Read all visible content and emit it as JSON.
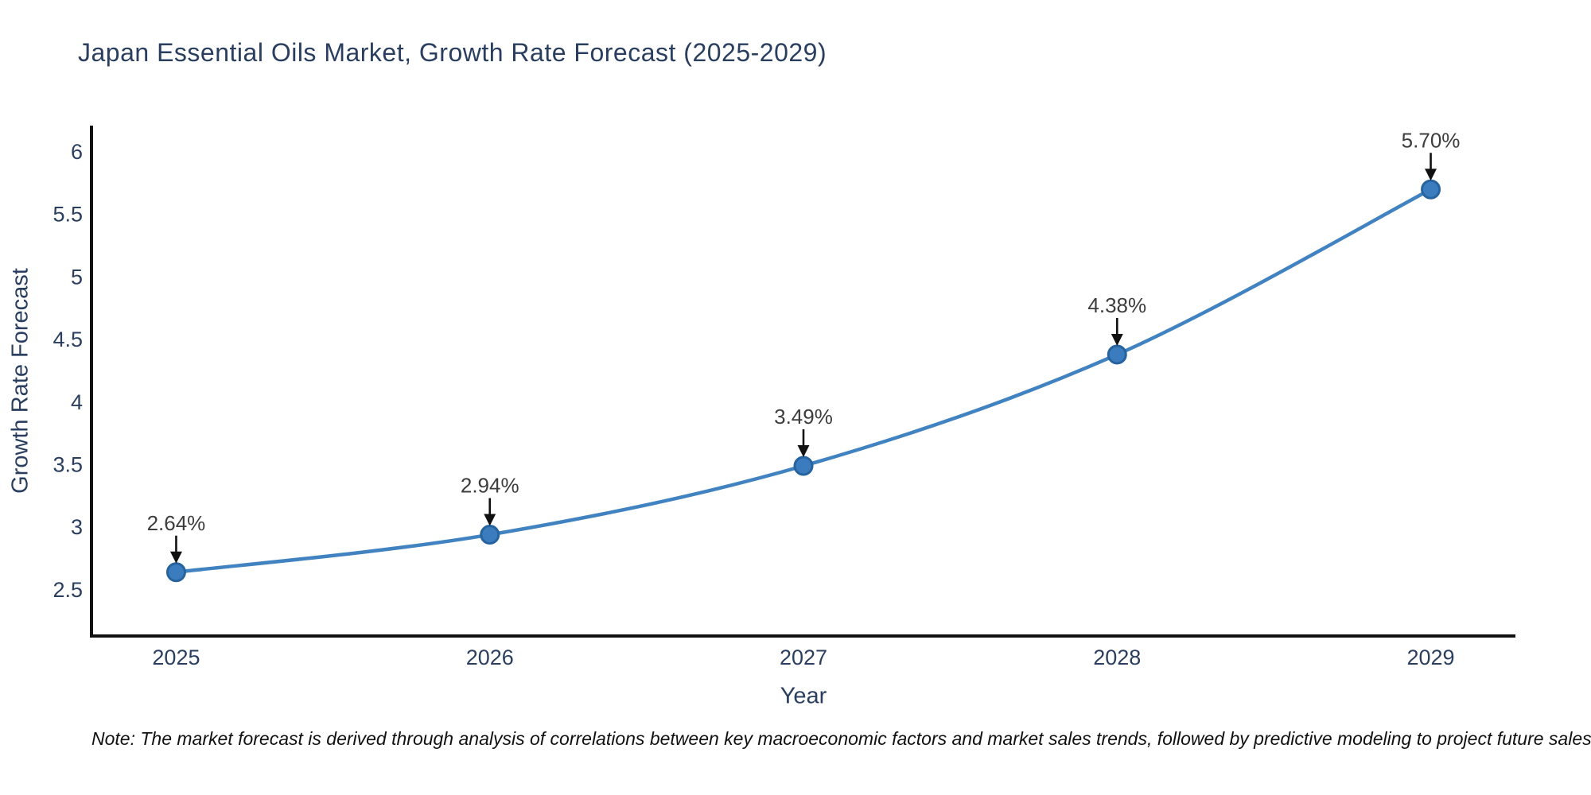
{
  "title": "Japan Essential Oils Market, Growth Rate Forecast (2025-2029)",
  "note": "Note: The market forecast is derived through analysis of correlations between key macroeconomic factors and market sales trends, followed by predictive modeling to project future sales",
  "chart_data": {
    "type": "line",
    "title": "Japan Essential Oils Market, Growth Rate Forecast (2025-2029)",
    "x": [
      2025,
      2026,
      2027,
      2028,
      2029
    ],
    "values": [
      2.64,
      2.94,
      3.49,
      4.38,
      5.7
    ],
    "point_labels": [
      "2.64%",
      "2.94%",
      "3.49%",
      "4.38%",
      "5.70%"
    ],
    "xlabel": "Year",
    "ylabel": "Growth Rate Forecast",
    "xticks": [
      2025,
      2026,
      2027,
      2028,
      2029
    ],
    "yticks": [
      2.5,
      3,
      3.5,
      4,
      4.5,
      5,
      5.5,
      6
    ],
    "xlim": [
      2024.73,
      2029.27
    ],
    "ylim": [
      2.13,
      6.21
    ],
    "grid": false,
    "legend": false,
    "line_shape": "spline",
    "colors": {
      "line": "#4183c0",
      "marker_fill": "#3a7cbd",
      "marker_edge": "#27639e",
      "axis_spine": "#111111",
      "tick_text": "#2a3f5f",
      "annotation_text": "#3d3d3d",
      "arrow": "#111111",
      "background": "#ffffff"
    }
  }
}
